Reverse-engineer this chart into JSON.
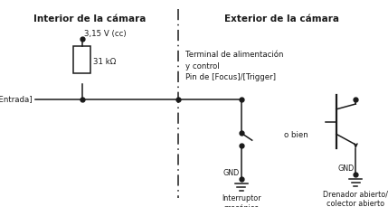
{
  "title_left": "Interior de la cámara",
  "title_right": "Exterior de la cámara",
  "label_voltage": "3,15 V (cc)",
  "label_resistor": "31 kΩ",
  "label_entrada": "[Entrada]",
  "label_terminal": "Terminal de alimentación\ny control\nPin de [Focus]/[Trigger]",
  "label_gnd1": "GND",
  "label_switch": "Interruptor\nmecánico",
  "label_gnd2": "GND",
  "label_transistor": "Drenador abierto/\ncolector abierto",
  "label_obien": "o bien",
  "bg_color": "#ffffff",
  "line_color": "#1a1a1a",
  "font_size_title": 7.5,
  "font_size_label": 6.2,
  "font_size_small": 5.8
}
